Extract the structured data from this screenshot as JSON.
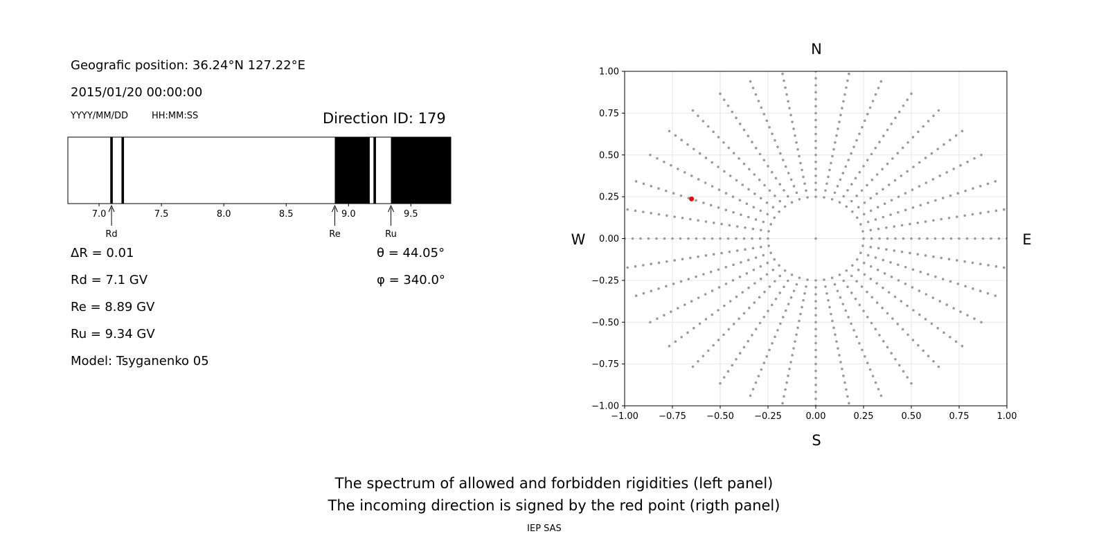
{
  "info": {
    "position": "Geografic position: 36.24°N 127.22°E",
    "datetime": "2015/01/20 00:00:00",
    "date_fmt": "YYYY/MM/DD",
    "time_fmt": "HH:MM:SS",
    "direction": "Direction ID: 179",
    "delta_r": "ΔR = 0.01",
    "rd": "Rd = 7.1 GV",
    "re": "Re = 8.89 GV",
    "ru": "Ru = 9.34 GV",
    "model": "Model: Tsyganenko 05",
    "theta": "θ = 44.05°",
    "phi": "φ = 340.0°"
  },
  "caption": {
    "line1": "The spectrum of allowed and forbidden rigidities (left panel)",
    "line2": "The incoming direction is signed by the red point (rigth panel)",
    "credit": "IEP SAS"
  },
  "chart_data": [
    {
      "type": "spectrum",
      "xlim": [
        6.75,
        9.82
      ],
      "xticks": [
        "7.0",
        "7.5",
        "8.0",
        "8.5",
        "9.0",
        "9.5"
      ],
      "tick_values": [
        7.0,
        7.5,
        8.0,
        8.5,
        9.0,
        9.5
      ],
      "forbidden_bands": [
        [
          7.09,
          7.11
        ],
        [
          7.18,
          7.2
        ],
        [
          8.89,
          9.17
        ],
        [
          9.2,
          9.22
        ],
        [
          9.34,
          9.82
        ]
      ],
      "markers": [
        {
          "label": "Rd",
          "value": 7.1
        },
        {
          "label": "Re",
          "value": 8.89
        },
        {
          "label": "Ru",
          "value": 9.34
        }
      ],
      "colors": {
        "forbidden": "#000000",
        "allowed": "#ffffff"
      }
    },
    {
      "type": "scatter",
      "xlim": [
        -1.0,
        1.0
      ],
      "ylim": [
        -1.0,
        1.0
      ],
      "xticks": [
        "−1.00",
        "−0.75",
        "−0.50",
        "−0.25",
        "0.00",
        "0.25",
        "0.50",
        "0.75",
        "1.00"
      ],
      "yticks": [
        "1.00",
        "0.75",
        "0.50",
        "0.25",
        "0.00",
        "−0.25",
        "−0.50",
        "−0.75",
        "−1.00"
      ],
      "tick_values": [
        -1.0,
        -0.75,
        -0.5,
        -0.25,
        0.0,
        0.25,
        0.5,
        0.75,
        1.0
      ],
      "grid": true,
      "compass": {
        "n": "N",
        "s": "S",
        "e": "E",
        "w": "W"
      },
      "directions": {
        "azimuth_step_deg": 10,
        "zenith_step_deg": 5,
        "zenith_max_deg": 90,
        "inner_radius": 0.25
      },
      "highlight": {
        "x": -0.65,
        "y": 0.237
      },
      "colors": {
        "points": "#999999",
        "highlight": "#ff0000",
        "grid": "#e6e6e6"
      }
    }
  ]
}
